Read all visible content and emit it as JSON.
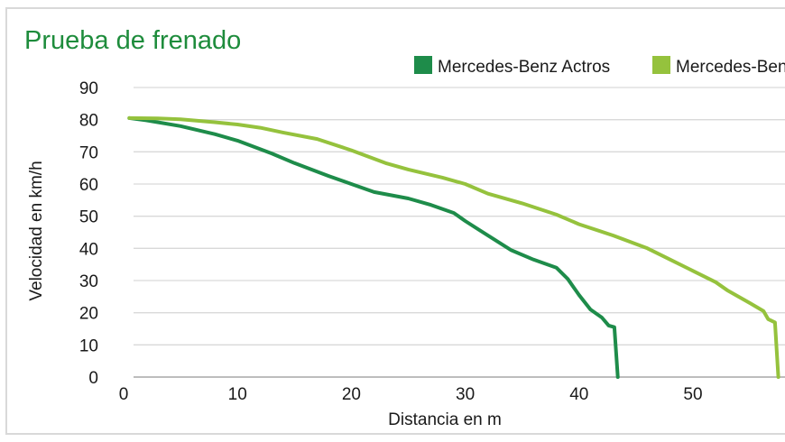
{
  "chart_data": {
    "type": "line",
    "title": "Prueba de frenado",
    "xlabel": "Distancia en m",
    "ylabel": "Velocidad en km/h",
    "xlim": [
      0,
      57.5
    ],
    "ylim": [
      0,
      90
    ],
    "x_ticks": [
      0,
      10,
      20,
      30,
      40,
      50
    ],
    "y_ticks": [
      0,
      10,
      20,
      30,
      40,
      50,
      60,
      70,
      80,
      90
    ],
    "grid": "horizontal",
    "legend_position": "top-right",
    "series": [
      {
        "name": "Mercedes-Benz Actros",
        "color": "#1e8c4a",
        "points": [
          [
            0.5,
            80.5
          ],
          [
            2,
            79.8
          ],
          [
            5,
            78
          ],
          [
            8,
            75.5
          ],
          [
            10,
            73.5
          ],
          [
            13,
            69.5
          ],
          [
            15,
            66.5
          ],
          [
            18,
            62.5
          ],
          [
            20,
            60
          ],
          [
            22,
            57.5
          ],
          [
            25,
            55.5
          ],
          [
            27,
            53.5
          ],
          [
            29,
            51
          ],
          [
            30,
            48.5
          ],
          [
            32,
            44
          ],
          [
            34,
            39.5
          ],
          [
            36,
            36.5
          ],
          [
            38,
            34
          ],
          [
            39,
            30.5
          ],
          [
            40,
            25.5
          ],
          [
            41,
            21
          ],
          [
            42,
            18.5
          ],
          [
            42.6,
            16
          ],
          [
            43.1,
            15.5
          ],
          [
            43.4,
            0
          ]
        ]
      },
      {
        "name": "Mercedes-Benz Atego",
        "color": "#95c23d",
        "points": [
          [
            0.5,
            80.5
          ],
          [
            3,
            80.4
          ],
          [
            5,
            80.1
          ],
          [
            8,
            79.2
          ],
          [
            10,
            78.5
          ],
          [
            12,
            77.5
          ],
          [
            14,
            76
          ],
          [
            17,
            74
          ],
          [
            20,
            70.5
          ],
          [
            23,
            66.5
          ],
          [
            25,
            64.5
          ],
          [
            28,
            62
          ],
          [
            30,
            60
          ],
          [
            32,
            57
          ],
          [
            35,
            54
          ],
          [
            38,
            50.5
          ],
          [
            40,
            47.5
          ],
          [
            43,
            44
          ],
          [
            46,
            40
          ],
          [
            48,
            36.5
          ],
          [
            50,
            33
          ],
          [
            52,
            29.5
          ],
          [
            53,
            27
          ],
          [
            55,
            23
          ],
          [
            56.2,
            20.5
          ],
          [
            56.6,
            18
          ],
          [
            57.2,
            17
          ],
          [
            57.5,
            0
          ]
        ]
      }
    ]
  }
}
